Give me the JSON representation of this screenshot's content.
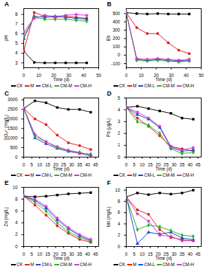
{
  "chart_data": [
    {
      "type": "line",
      "title": "A",
      "x_label": "Time (d)",
      "y_label": "pH",
      "x": [
        0,
        7,
        14,
        21,
        28,
        35,
        42
      ],
      "xlim": [
        0,
        50
      ],
      "xticks": [
        0,
        10,
        20,
        30,
        40,
        50
      ],
      "ylim": [
        2.5,
        8.6
      ],
      "yticks": [
        3,
        4,
        5,
        6,
        7,
        8
      ],
      "grid": false,
      "series": [
        {
          "name": "CK",
          "color": "#000000",
          "marker": "square",
          "values": [
            4.2,
            3.05,
            3.0,
            3.0,
            3.0,
            3.0,
            3.0
          ]
        },
        {
          "name": "M",
          "color": "#e41a1c",
          "marker": "circle",
          "values": [
            4.2,
            8.2,
            7.8,
            7.7,
            7.8,
            7.7,
            7.6
          ]
        },
        {
          "name": "CM-L",
          "color": "#1f3fd6",
          "marker": "triangle",
          "values": [
            5.5,
            7.8,
            7.7,
            7.8,
            7.7,
            7.6,
            7.5
          ]
        },
        {
          "name": "CM-M",
          "color": "#22b022",
          "marker": "diamond",
          "values": [
            5.8,
            7.7,
            7.5,
            7.5,
            7.5,
            7.4,
            7.3
          ]
        },
        {
          "name": "CM-H",
          "color": "#cc33cc",
          "marker": "star",
          "values": [
            6.2,
            7.6,
            7.9,
            7.8,
            7.9,
            8.0,
            7.9
          ]
        }
      ]
    },
    {
      "type": "line",
      "title": "B",
      "x_label": "Time (d)",
      "y_label": "Eh",
      "x": [
        0,
        7,
        14,
        21,
        28,
        35,
        42
      ],
      "xlim": [
        0,
        50
      ],
      "xticks": [
        0,
        10,
        20,
        30,
        40,
        50
      ],
      "ylim": [
        -150,
        560
      ],
      "yticks": [
        -100,
        0,
        100,
        200,
        300,
        400,
        500
      ],
      "grid": false,
      "series": [
        {
          "name": "CK",
          "color": "#000000",
          "marker": "square",
          "values": [
            510,
            500,
            495,
            500,
            495,
            495,
            495
          ]
        },
        {
          "name": "M",
          "color": "#e41a1c",
          "marker": "circle",
          "values": [
            510,
            330,
            260,
            260,
            150,
            60,
            20
          ]
        },
        {
          "name": "CM-L",
          "color": "#1f3fd6",
          "marker": "triangle",
          "values": [
            510,
            -50,
            -60,
            -50,
            -60,
            -70,
            -60
          ]
        },
        {
          "name": "CM-M",
          "color": "#22b022",
          "marker": "diamond",
          "values": [
            510,
            -60,
            -70,
            -60,
            -70,
            -80,
            -70
          ]
        },
        {
          "name": "CM-H",
          "color": "#cc33cc",
          "marker": "star",
          "values": [
            510,
            -40,
            -50,
            -40,
            -50,
            -60,
            -50
          ]
        }
      ]
    },
    {
      "type": "line",
      "title": "C",
      "x_label": "Time (d)",
      "y_label": "SO₄²⁻ (mg/L)",
      "x": [
        0,
        7,
        14,
        21,
        28,
        35,
        42
      ],
      "xlim": [
        0,
        47
      ],
      "xticks": [
        0,
        5,
        10,
        15,
        20,
        25,
        30,
        35,
        40,
        45
      ],
      "ylim": [
        0,
        3100
      ],
      "yticks": [
        0,
        500,
        1000,
        1500,
        2000,
        2500,
        3000
      ],
      "grid": false,
      "series": [
        {
          "name": "CK",
          "color": "#000000",
          "marker": "square",
          "values": [
            2550,
            2950,
            2850,
            2600,
            2500,
            2500,
            2350
          ]
        },
        {
          "name": "M",
          "color": "#e41a1c",
          "marker": "circle",
          "values": [
            2550,
            2000,
            1700,
            1150,
            750,
            600,
            400
          ]
        },
        {
          "name": "CM-L",
          "color": "#1f3fd6",
          "marker": "triangle",
          "values": [
            2550,
            1000,
            700,
            450,
            300,
            200,
            150
          ]
        },
        {
          "name": "CM-M",
          "color": "#22b022",
          "marker": "diamond",
          "values": [
            2550,
            1100,
            800,
            500,
            350,
            250,
            100
          ]
        },
        {
          "name": "CM-H",
          "color": "#cc33cc",
          "marker": "star",
          "values": [
            2550,
            1200,
            800,
            550,
            350,
            200,
            50
          ]
        }
      ]
    },
    {
      "type": "line",
      "title": "D",
      "x_label": "Time (d)",
      "y_label": "Pb (μg/L)",
      "x": [
        0,
        7,
        14,
        21,
        28,
        35,
        42
      ],
      "xlim": [
        0,
        47
      ],
      "xticks": [
        0,
        5,
        10,
        15,
        20,
        25,
        30,
        35,
        40,
        45
      ],
      "ylim": [
        0,
        5
      ],
      "yticks": [
        0,
        1,
        2,
        3,
        4,
        5
      ],
      "grid": false,
      "series": [
        {
          "name": "CK",
          "color": "#000000",
          "marker": "square",
          "values": [
            4.2,
            4.3,
            4.1,
            3.9,
            3.7,
            3.3,
            3.2
          ]
        },
        {
          "name": "M",
          "color": "#e41a1c",
          "marker": "circle",
          "values": [
            4.2,
            3.3,
            2.6,
            1.8,
            0.9,
            0.7,
            0.5
          ]
        },
        {
          "name": "CM-L",
          "color": "#1f3fd6",
          "marker": "triangle",
          "values": [
            4.2,
            3.6,
            3.2,
            2.5,
            0.8,
            0.5,
            0.6
          ]
        },
        {
          "name": "CM-M",
          "color": "#22b022",
          "marker": "diamond",
          "values": [
            4.2,
            3.0,
            2.7,
            2.0,
            0.7,
            0.3,
            0.4
          ]
        },
        {
          "name": "CM-H",
          "color": "#cc33cc",
          "marker": "star",
          "values": [
            4.2,
            3.8,
            3.3,
            2.6,
            0.9,
            0.6,
            0.8
          ]
        }
      ]
    },
    {
      "type": "line",
      "title": "E",
      "x_label": "Time (d)",
      "y_label": "Zn (mg/L)",
      "x": [
        0,
        7,
        14,
        21,
        28,
        35,
        42
      ],
      "xlim": [
        0,
        47
      ],
      "xticks": [
        0,
        5,
        10,
        15,
        20,
        25,
        30,
        35,
        40,
        45
      ],
      "ylim": [
        0,
        10
      ],
      "yticks": [
        0,
        2,
        4,
        6,
        8,
        10
      ],
      "grid": false,
      "series": [
        {
          "name": "CK",
          "color": "#000000",
          "marker": "square",
          "values": [
            8.5,
            8.4,
            8.5,
            8.7,
            8.9,
            9.0,
            9.1
          ]
        },
        {
          "name": "M",
          "color": "#e41a1c",
          "marker": "circle",
          "values": [
            8.5,
            7.0,
            5.3,
            3.5,
            2.2,
            1.2,
            0.7
          ]
        },
        {
          "name": "CM-L",
          "color": "#1f3fd6",
          "marker": "triangle",
          "values": [
            8.5,
            7.8,
            6.5,
            4.5,
            3.0,
            1.8,
            1.0
          ]
        },
        {
          "name": "CM-M",
          "color": "#22b022",
          "marker": "diamond",
          "values": [
            8.5,
            7.5,
            6.0,
            4.0,
            2.5,
            1.5,
            0.9
          ]
        },
        {
          "name": "CM-H",
          "color": "#cc33cc",
          "marker": "star",
          "values": [
            8.5,
            8.0,
            6.8,
            4.8,
            3.2,
            2.0,
            1.2
          ]
        }
      ]
    },
    {
      "type": "line",
      "title": "F",
      "x_label": "Time (d)",
      "y_label": "Mn (mg/L)",
      "x": [
        0,
        7,
        14,
        21,
        28,
        35,
        42
      ],
      "xlim": [
        0,
        47
      ],
      "xticks": [
        0,
        5,
        10,
        15,
        20,
        25,
        30,
        35,
        40,
        45
      ],
      "ylim": [
        0,
        10.5
      ],
      "yticks": [
        0,
        2,
        4,
        6,
        8,
        10
      ],
      "grid": false,
      "series": [
        {
          "name": "CK",
          "color": "#000000",
          "marker": "square",
          "values": [
            8.8,
            9.5,
            9.2,
            9.5,
            9.3,
            9.5,
            10.0
          ]
        },
        {
          "name": "M",
          "color": "#e41a1c",
          "marker": "circle",
          "values": [
            8.8,
            6.5,
            5.7,
            3.0,
            1.6,
            1.2,
            1.0
          ]
        },
        {
          "name": "CM-L",
          "color": "#1f3fd6",
          "marker": "triangle",
          "values": [
            8.8,
            0.5,
            2.5,
            2.2,
            2.5,
            1.5,
            1.2
          ]
        },
        {
          "name": "CM-M",
          "color": "#22b022",
          "marker": "diamond",
          "values": [
            8.8,
            3.0,
            3.8,
            3.5,
            2.8,
            2.0,
            1.8
          ]
        },
        {
          "name": "CM-H",
          "color": "#cc33cc",
          "marker": "star",
          "values": [
            8.8,
            5.8,
            4.5,
            2.0,
            1.8,
            1.0,
            1.1
          ]
        }
      ]
    }
  ]
}
